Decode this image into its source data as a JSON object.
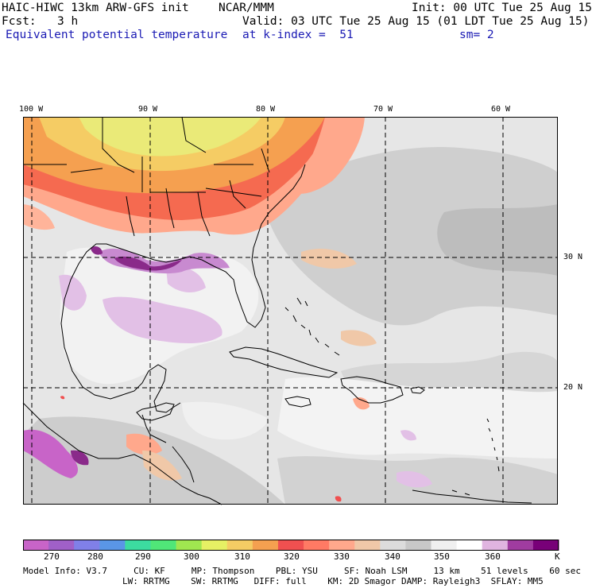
{
  "header": {
    "title": "HAIC-HIWC 13km ARW-GFS init",
    "org": "NCAR/MMM",
    "init": "Init: 00 UTC Tue 25 Aug 15",
    "fcst_label": "Fcst:",
    "fcst_value": "3 h",
    "valid": "Valid: 03 UTC Tue 25 Aug 15 (01 LDT Tue 25 Aug 15)",
    "field": "Equivalent potential temperature",
    "level": "at k-index =  51",
    "smoothing": "sm= 2"
  },
  "map": {
    "lon_labels": [
      "100 W",
      "90 W",
      "80 W",
      "70 W",
      "60 W"
    ],
    "lat_labels": [
      "30 N",
      "20 N"
    ]
  },
  "colorbar": {
    "tick_labels": [
      "270",
      "280",
      "290",
      "300",
      "310",
      "320",
      "330",
      "340",
      "350",
      "360"
    ],
    "unit": "K",
    "colors": [
      "#c864c8",
      "#a060c8",
      "#8080e8",
      "#5a96e6",
      "#3cdca0",
      "#50e678",
      "#a0e650",
      "#e6f064",
      "#f5cc64",
      "#f5a050",
      "#f05050",
      "#ff7a64",
      "#ffa88c",
      "#f0c8a8",
      "#dcdcdc",
      "#c8c8c8",
      "#f0f0f0",
      "#ffffff",
      "#e0b4e0",
      "#a03ca0",
      "#780078"
    ]
  },
  "footer": {
    "line1": "Model Info: V3.7     CU: KF     MP: Thompson    PBL: YSU     SF: Noah LSM     13 km    51 levels    60 sec",
    "line2": "LW: RRTMG    SW: RRTMG   DIFF: full    KM: 2D Smagor DAMP: Rayleigh3  SFLAY: MM5"
  }
}
